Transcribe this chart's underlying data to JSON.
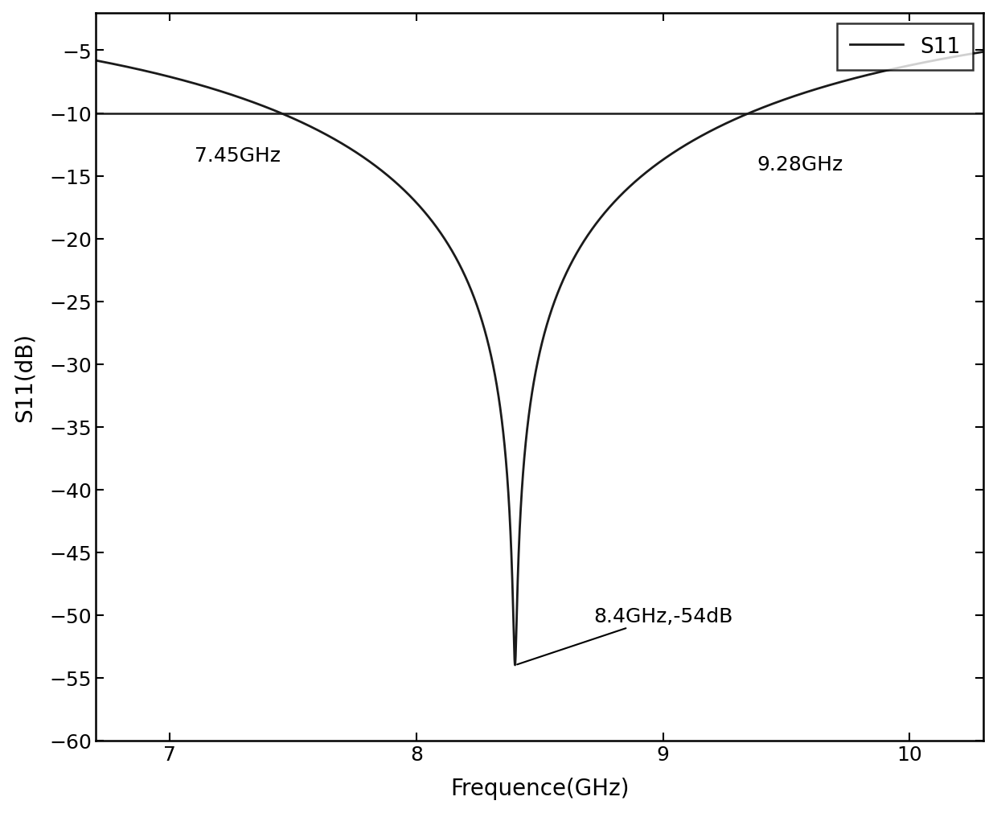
{
  "xlabel": "Frequence(GHz)",
  "ylabel": "S11(dB)",
  "xlim": [
    6.7,
    10.3
  ],
  "ylim": [
    -60,
    -2
  ],
  "yticks": [
    -5,
    -10,
    -15,
    -20,
    -25,
    -30,
    -35,
    -40,
    -45,
    -50,
    -55,
    -60
  ],
  "xticks": [
    7,
    8,
    9,
    10
  ],
  "f_min": 6.7,
  "f_max": 10.3,
  "f_res": 8.4,
  "s11_min": -54,
  "f_lower": 7.45,
  "f_upper": 9.28,
  "s11_threshold": -10,
  "line_color": "#1a1a1a",
  "hline_color": "#1a1a1a",
  "annotation_lower": "7.45GHz",
  "annotation_upper": "9.28GHz",
  "annotation_res": "8.4GHz,-54dB",
  "legend_label": "S11",
  "background_color": "#ffffff",
  "xlabel_fontsize": 20,
  "ylabel_fontsize": 20,
  "tick_fontsize": 18,
  "legend_fontsize": 19,
  "annotation_fontsize": 18
}
